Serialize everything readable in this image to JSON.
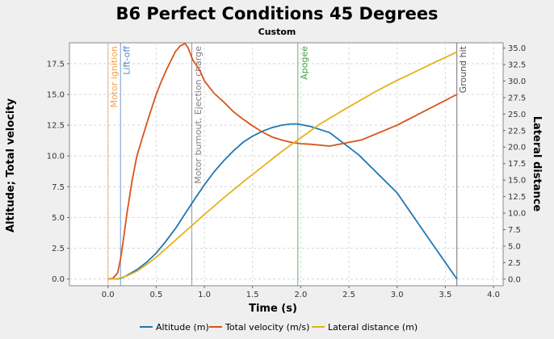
{
  "chart_data": {
    "type": "line",
    "title": "B6 Perfect Conditions 45 Degrees",
    "subtitle": "Custom",
    "xlabel": "Time (s)",
    "ylabel_left": "Altitude; Total velocity",
    "ylabel_right": "Lateral distance",
    "xlim": [
      -0.4,
      4.1
    ],
    "ylim_left": [
      -0.55,
      19.2
    ],
    "ylim_right": [
      -1.0,
      35.8
    ],
    "x_ticks": [
      "0.0",
      "0.5",
      "1.0",
      "1.5",
      "2.0",
      "2.5",
      "3.0",
      "3.5",
      "4.0"
    ],
    "y_left_ticks": [
      "0.0",
      "2.5",
      "5.0",
      "7.5",
      "10.0",
      "12.5",
      "15.0",
      "17.5"
    ],
    "y_right_ticks": [
      "0.0",
      "2.5",
      "5.0",
      "7.5",
      "10.0",
      "12.5",
      "15.0",
      "17.5",
      "20.0",
      "22.5",
      "25.0",
      "27.5",
      "30.0",
      "32.5",
      "35.0"
    ],
    "grid": true,
    "legend_position": "bottom",
    "series": [
      {
        "name": "Altitude (m)",
        "axis": "left",
        "color": "#1f77b4",
        "x": [
          0.0,
          0.1,
          0.15,
          0.2,
          0.3,
          0.4,
          0.5,
          0.6,
          0.7,
          0.8,
          0.9,
          1.0,
          1.1,
          1.2,
          1.3,
          1.4,
          1.5,
          1.6,
          1.7,
          1.8,
          1.9,
          1.97,
          2.1,
          2.3,
          2.6,
          3.0,
          3.3,
          3.62
        ],
        "y": [
          0.0,
          0.0,
          0.1,
          0.3,
          0.75,
          1.35,
          2.1,
          3.05,
          4.1,
          5.3,
          6.5,
          7.65,
          8.7,
          9.6,
          10.4,
          11.1,
          11.6,
          12.0,
          12.3,
          12.5,
          12.6,
          12.6,
          12.4,
          11.9,
          10.1,
          7.0,
          3.6,
          0.0
        ]
      },
      {
        "name": "Total velocity (m/s)",
        "axis": "left",
        "color": "#d95319",
        "x": [
          0.0,
          0.05,
          0.1,
          0.13,
          0.16,
          0.2,
          0.25,
          0.3,
          0.35,
          0.4,
          0.45,
          0.5,
          0.55,
          0.6,
          0.65,
          0.7,
          0.75,
          0.8,
          0.83,
          0.88,
          0.95,
          1.0,
          1.1,
          1.2,
          1.3,
          1.4,
          1.5,
          1.6,
          1.7,
          1.8,
          1.9,
          2.0,
          2.1,
          2.3,
          2.63,
          3.0,
          3.62
        ],
        "y": [
          0.0,
          0.05,
          0.5,
          1.6,
          3.2,
          5.5,
          8.0,
          10.0,
          11.3,
          12.6,
          13.8,
          15.0,
          16.0,
          16.9,
          17.7,
          18.5,
          18.95,
          19.15,
          18.8,
          17.8,
          17.0,
          16.1,
          15.1,
          14.4,
          13.6,
          13.0,
          12.45,
          11.95,
          11.55,
          11.3,
          11.1,
          11.0,
          10.95,
          10.8,
          11.3,
          12.5,
          15.0
        ]
      },
      {
        "name": "Lateral distance (m)",
        "axis": "right",
        "color": "#e6b21a",
        "x": [
          0.0,
          0.1,
          0.2,
          0.3,
          0.4,
          0.5,
          0.6,
          0.7,
          0.8,
          0.9,
          1.0,
          1.2,
          1.4,
          1.6,
          1.8,
          2.0,
          2.2,
          2.5,
          2.8,
          3.0,
          3.2,
          3.4,
          3.62
        ],
        "y": [
          0.0,
          0.05,
          0.5,
          1.2,
          2.2,
          3.3,
          4.6,
          5.9,
          7.2,
          8.5,
          9.8,
          12.3,
          14.7,
          17.0,
          19.3,
          21.4,
          23.5,
          26.1,
          28.6,
          30.1,
          31.5,
          32.9,
          34.4
        ]
      }
    ],
    "events": [
      {
        "name": "Motor ignition",
        "x": 0.0,
        "color": "#f0a050"
      },
      {
        "name": "Lift-off",
        "x": 0.13,
        "color": "#4d86c8"
      },
      {
        "name": "Motor burnout, Ejection charge",
        "x": 0.87,
        "color": "#7f7f7f"
      },
      {
        "name": "Apogee",
        "x": 1.97,
        "color": "#3f9f3f"
      },
      {
        "name": "Ground hit",
        "x": 3.62,
        "color": "#505050"
      }
    ]
  }
}
